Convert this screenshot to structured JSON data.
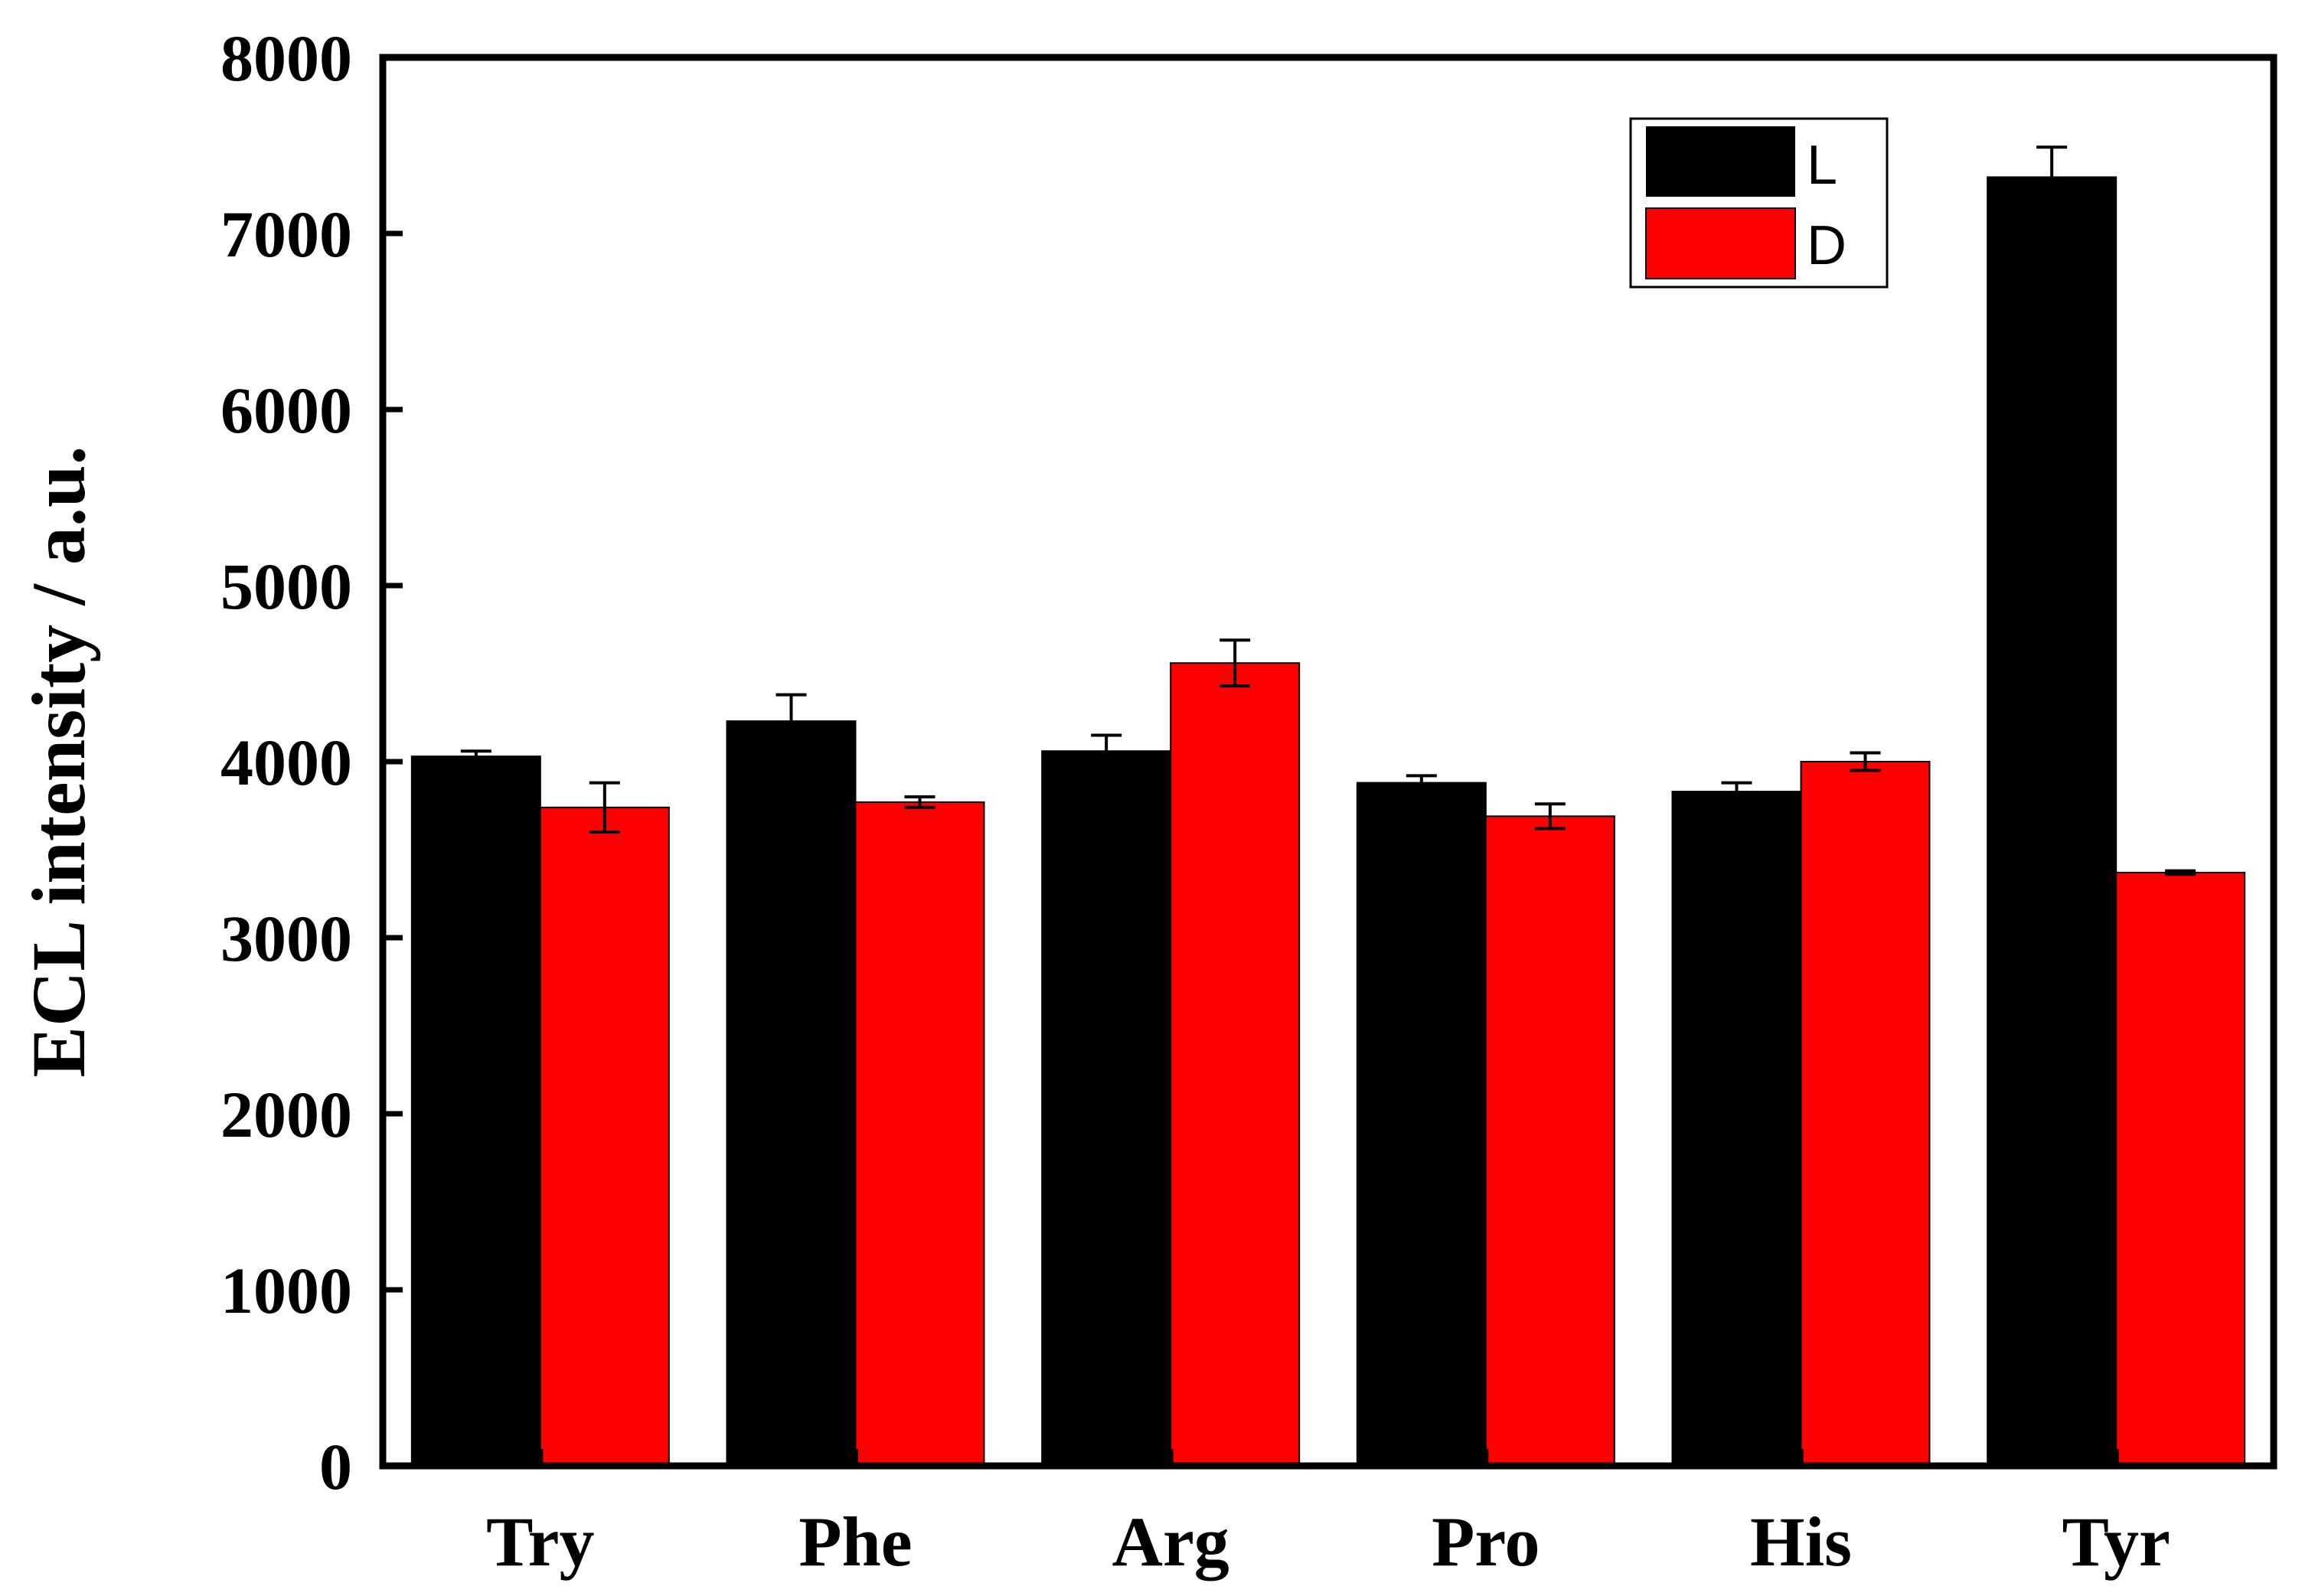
{
  "chart_data": {
    "type": "bar",
    "ylabel": "ECL intensity / a.u.",
    "xlabel": "",
    "ylim": [
      0,
      8000
    ],
    "yticks": [
      0,
      1000,
      2000,
      3000,
      4000,
      5000,
      6000,
      7000,
      8000
    ],
    "ytick_labels": [
      "0",
      "1000",
      "2000",
      "3000",
      "4000",
      "5000",
      "6000",
      "7000",
      "8000"
    ],
    "categories": [
      "Try",
      "Phe",
      "Arg",
      "Pro",
      "His",
      "Tyr"
    ],
    "series": [
      {
        "name": "L",
        "color": "#000000",
        "values": [
          4030,
          4230,
          4060,
          3880,
          3830,
          7320
        ],
        "errors": [
          30,
          150,
          90,
          40,
          50,
          170
        ]
      },
      {
        "name": "D",
        "color": "#ff0000",
        "values": [
          3740,
          3770,
          4560,
          3690,
          4000,
          3370
        ],
        "errors": [
          140,
          30,
          130,
          70,
          50,
          10
        ]
      }
    ],
    "legend": "top-right",
    "grid": false
  }
}
